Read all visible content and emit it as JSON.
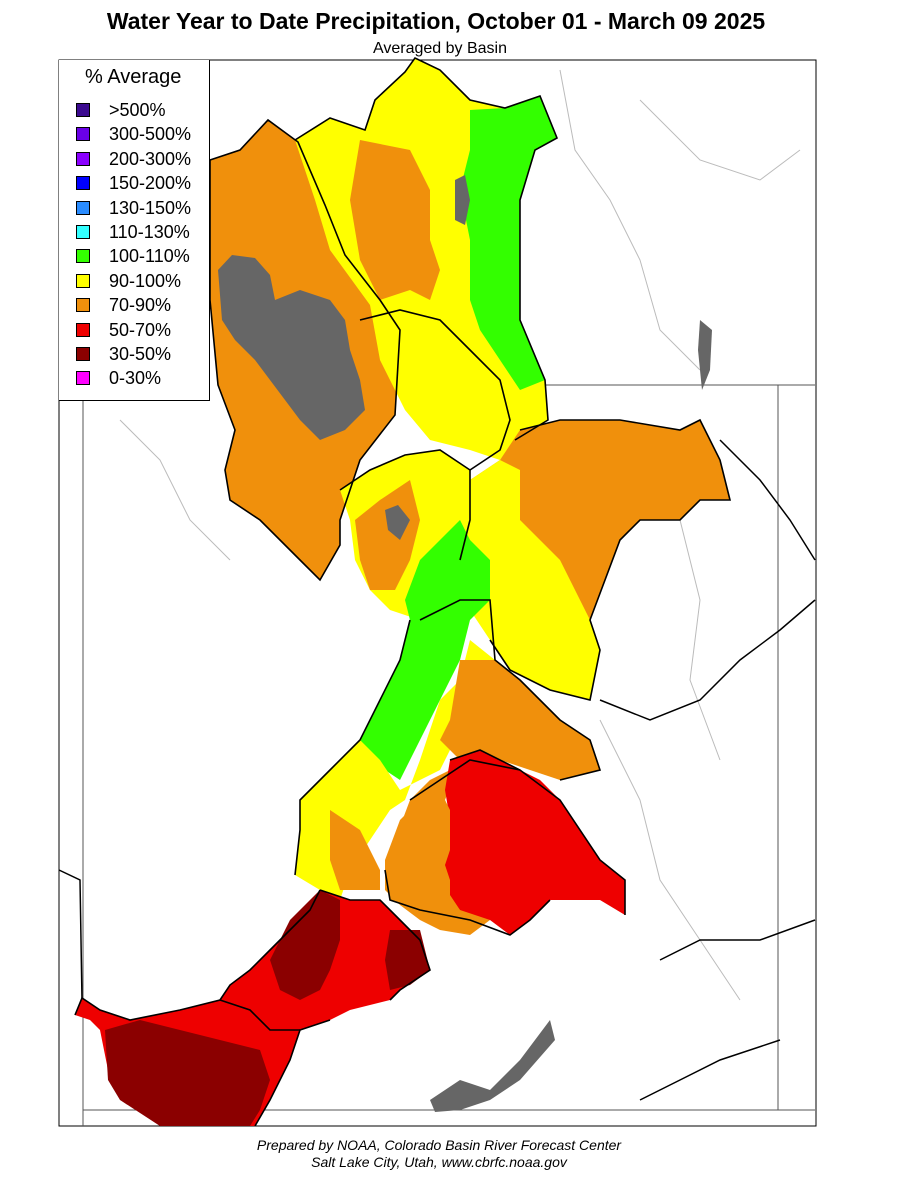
{
  "map": {
    "title": "Water Year to Date Precipitation, October 01  - March 09 2025",
    "subtitle": "Averaged by Basin"
  },
  "legend": {
    "title": "% Average",
    "items": [
      {
        "label": ">500%",
        "color": "#3b0a8f"
      },
      {
        "label": "300-500%",
        "color": "#6a00e8"
      },
      {
        "label": "200-300%",
        "color": "#8a00ff"
      },
      {
        "label": "150-200%",
        "color": "#0000ff"
      },
      {
        "label": "130-150%",
        "color": "#2a8cff"
      },
      {
        "label": "110-130%",
        "color": "#33ffff"
      },
      {
        "label": "100-110%",
        "color": "#33ff00"
      },
      {
        "label": "90-100%",
        "color": "#ffff00"
      },
      {
        "label": "70-90%",
        "color": "#f0900c"
      },
      {
        "label": "50-70%",
        "color": "#ee0000"
      },
      {
        "label": "30-50%",
        "color": "#8b0000"
      },
      {
        "label": "0-30%",
        "color": "#ff00ff"
      }
    ]
  },
  "colors": {
    "lake": "#666666",
    "boundary": "#000000",
    "background": "#ffffff"
  },
  "credit": {
    "line1": "Prepared by NOAA, Colorado Basin River Forecast Center",
    "line2": "Salt Lake City, Utah, www.cbrfc.noaa.gov"
  }
}
